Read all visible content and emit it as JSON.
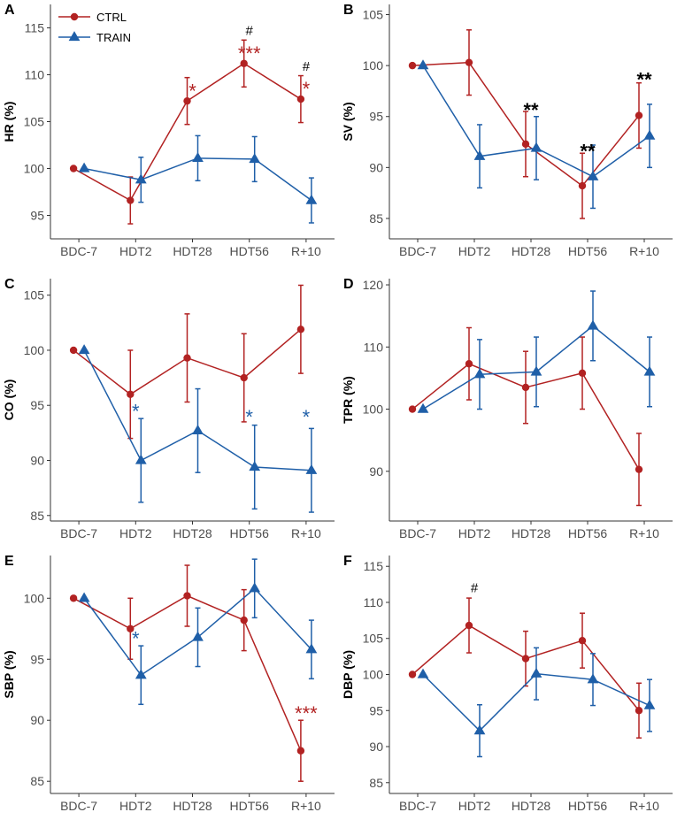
{
  "legend": {
    "ctrl_label": "CTRL",
    "train_label": "TRAIN"
  },
  "colors": {
    "ctrl": "#b22222",
    "train": "#1f5fa8",
    "black": "#000000",
    "axis": "#333333"
  },
  "chart_data": [
    {
      "panel": "A",
      "type": "line",
      "ylabel": "HR (%)",
      "categories": [
        "BDC-7",
        "HDT2",
        "HDT28",
        "HDT56",
        "R+10"
      ],
      "ylim": [
        92.5,
        117.5
      ],
      "yticks": [
        95,
        100,
        105,
        110,
        115
      ],
      "series": [
        {
          "name": "CTRL",
          "values": [
            100,
            96.6,
            107.2,
            111.2,
            107.4
          ],
          "errors": [
            0,
            2.5,
            2.5,
            2.5,
            2.5
          ]
        },
        {
          "name": "TRAIN",
          "values": [
            100,
            98.8,
            101.1,
            101,
            96.6
          ],
          "errors": [
            0,
            2.4,
            2.4,
            2.4,
            2.4
          ]
        }
      ],
      "annotations": [
        {
          "x": "HDT28",
          "y": 108.7,
          "text": "*",
          "color": "ctrl"
        },
        {
          "x": "HDT56",
          "y": 112.7,
          "text": "***",
          "color": "ctrl"
        },
        {
          "x": "HDT56",
          "y": 114.7,
          "text": "#",
          "color": "black"
        },
        {
          "x": "R+10",
          "y": 108.9,
          "text": "*",
          "color": "ctrl"
        },
        {
          "x": "R+10",
          "y": 110.9,
          "text": "#",
          "color": "black"
        }
      ]
    },
    {
      "panel": "B",
      "type": "line",
      "ylabel": "SV (%)",
      "categories": [
        "BDC-7",
        "HDT2",
        "HDT28",
        "HDT56",
        "R+10"
      ],
      "ylim": [
        83,
        106
      ],
      "yticks": [
        85,
        90,
        95,
        100,
        105
      ],
      "series": [
        {
          "name": "CTRL",
          "values": [
            100,
            100.3,
            92.3,
            88.2,
            95.1
          ],
          "errors": [
            0,
            3.2,
            3.2,
            3.2,
            3.2
          ]
        },
        {
          "name": "TRAIN",
          "values": [
            100,
            91.1,
            91.9,
            89.1,
            93.1
          ],
          "errors": [
            0,
            3.1,
            3.1,
            3.1,
            3.1
          ]
        }
      ],
      "annotations": [
        {
          "x": "HDT28",
          "y": 96,
          "text": "**",
          "color": "black"
        },
        {
          "x": "HDT56",
          "y": 92,
          "text": "**",
          "color": "black"
        },
        {
          "x": "R+10",
          "y": 99,
          "text": "**",
          "color": "black"
        }
      ]
    },
    {
      "panel": "C",
      "type": "line",
      "ylabel": "CO (%)",
      "categories": [
        "BDC-7",
        "HDT2",
        "HDT28",
        "HDT56",
        "R+10"
      ],
      "ylim": [
        84.5,
        106.5
      ],
      "yticks": [
        85,
        90,
        95,
        100,
        105
      ],
      "series": [
        {
          "name": "CTRL",
          "values": [
            100,
            96,
            99.3,
            97.5,
            101.9
          ],
          "errors": [
            0,
            4,
            4,
            4,
            4
          ]
        },
        {
          "name": "TRAIN",
          "values": [
            100,
            90,
            92.7,
            89.4,
            89.1
          ],
          "errors": [
            0,
            3.8,
            3.8,
            3.8,
            3.8
          ]
        }
      ],
      "annotations": [
        {
          "x": "HDT2",
          "y": 94.8,
          "text": "*",
          "color": "train"
        },
        {
          "x": "HDT56",
          "y": 94.3,
          "text": "*",
          "color": "train"
        },
        {
          "x": "R+10",
          "y": 94.3,
          "text": "*",
          "color": "train"
        }
      ]
    },
    {
      "panel": "D",
      "type": "line",
      "ylabel": "TPR (%)",
      "categories": [
        "BDC-7",
        "HDT2",
        "HDT28",
        "HDT56",
        "R+10"
      ],
      "ylim": [
        82,
        121
      ],
      "yticks": [
        90,
        100,
        110,
        120
      ],
      "series": [
        {
          "name": "CTRL",
          "values": [
            100,
            107.3,
            103.5,
            105.8,
            90.3
          ],
          "errors": [
            0,
            5.8,
            5.8,
            5.8,
            5.8
          ]
        },
        {
          "name": "TRAIN",
          "values": [
            100,
            105.6,
            106,
            113.4,
            106
          ],
          "errors": [
            0,
            5.6,
            5.6,
            5.6,
            5.6
          ]
        }
      ],
      "annotations": []
    },
    {
      "panel": "E",
      "type": "line",
      "ylabel": "SBP (%)",
      "categories": [
        "BDC-7",
        "HDT2",
        "HDT28",
        "HDT56",
        "R+10"
      ],
      "ylim": [
        84,
        103.5
      ],
      "yticks": [
        85,
        90,
        95,
        100
      ],
      "series": [
        {
          "name": "CTRL",
          "values": [
            100,
            97.5,
            100.2,
            98.2,
            87.5
          ],
          "errors": [
            0,
            2.5,
            2.5,
            2.5,
            2.5
          ]
        },
        {
          "name": "TRAIN",
          "values": [
            100,
            93.7,
            96.8,
            100.8,
            95.8
          ],
          "errors": [
            0,
            2.4,
            2.4,
            2.4,
            2.4
          ]
        }
      ],
      "annotations": [
        {
          "x": "HDT2",
          "y": 97,
          "text": "*",
          "color": "train"
        },
        {
          "x": "R+10",
          "y": 90.9,
          "text": "***",
          "color": "ctrl"
        }
      ]
    },
    {
      "panel": "F",
      "type": "line",
      "ylabel": "DBP (%)",
      "categories": [
        "BDC-7",
        "HDT2",
        "HDT28",
        "HDT56",
        "R+10"
      ],
      "ylim": [
        83.5,
        116.5
      ],
      "yticks": [
        85,
        90,
        95,
        100,
        105,
        110,
        115
      ],
      "series": [
        {
          "name": "CTRL",
          "values": [
            100,
            106.8,
            102.2,
            104.7,
            95
          ],
          "errors": [
            0,
            3.8,
            3.8,
            3.8,
            3.8
          ]
        },
        {
          "name": "TRAIN",
          "values": [
            100,
            92.2,
            100.1,
            99.3,
            95.7
          ],
          "errors": [
            0,
            3.6,
            3.6,
            3.6,
            3.6
          ]
        }
      ],
      "annotations": [
        {
          "x": "HDT2",
          "y": 112,
          "text": "#",
          "color": "black"
        }
      ]
    }
  ]
}
